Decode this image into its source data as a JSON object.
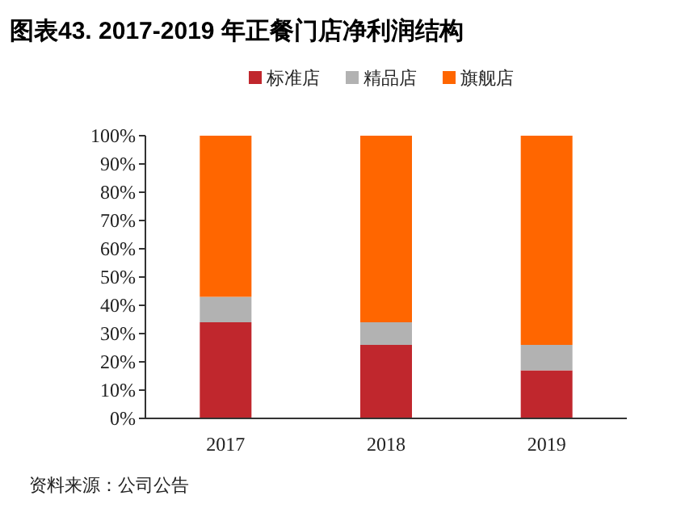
{
  "chart_data": {
    "type": "bar",
    "stacked": true,
    "title": "图表43. 2017-2019 年正餐门店净利润结构",
    "categories": [
      "2017",
      "2018",
      "2019"
    ],
    "series": [
      {
        "name": "标准店",
        "color": "#c0272d",
        "values": [
          34,
          26,
          17
        ]
      },
      {
        "name": "精品店",
        "color": "#b2b2b2",
        "values": [
          9,
          8,
          9
        ]
      },
      {
        "name": "旗舰店",
        "color": "#ff6600",
        "values": [
          57,
          66,
          74
        ]
      }
    ],
    "ylim": [
      0,
      100
    ],
    "yticks": [
      {
        "value": 0,
        "label": "0%"
      },
      {
        "value": 10,
        "label": "10%"
      },
      {
        "value": 20,
        "label": "20%"
      },
      {
        "value": 30,
        "label": "30%"
      },
      {
        "value": 40,
        "label": "40%"
      },
      {
        "value": 50,
        "label": "50%"
      },
      {
        "value": 60,
        "label": "60%"
      },
      {
        "value": 70,
        "label": "70%"
      },
      {
        "value": 80,
        "label": "80%"
      },
      {
        "value": 90,
        "label": "90%"
      },
      {
        "value": 100,
        "label": "100%"
      }
    ],
    "grid": false,
    "legend": "top",
    "annotations": [
      "资料来源：公司公告"
    ]
  }
}
